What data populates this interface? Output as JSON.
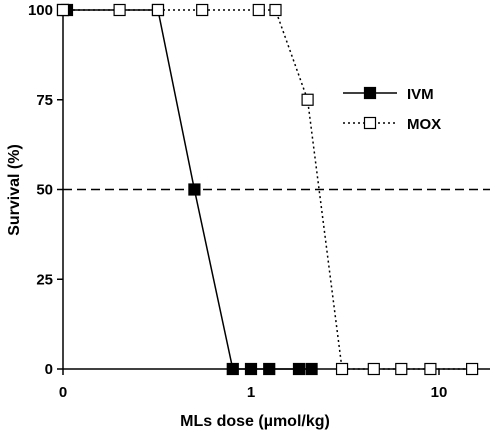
{
  "chart_data": {
    "type": "line",
    "xlabel": "MLs dose (µmol/kg)",
    "ylabel": "Survival (%)",
    "x_scale": "log",
    "xlim": [
      0.1,
      20
    ],
    "ylim": [
      0,
      100
    ],
    "xticks": [
      0.1,
      1,
      10
    ],
    "xtick_labels": [
      "0",
      "1",
      "10"
    ],
    "yticks": [
      0,
      25,
      50,
      75,
      100
    ],
    "ytick_labels": [
      "0",
      "25",
      "50",
      "75",
      "100"
    ],
    "reference_line": {
      "y": 50,
      "style": "dashed"
    },
    "grid": false,
    "legend_position": "right",
    "series": [
      {
        "name": "IVM",
        "marker": "filled-square",
        "line_style": "solid",
        "color": "#000000",
        "points": [
          {
            "x": 0.1,
            "y": 100
          },
          {
            "x": 0.105,
            "y": 100
          },
          {
            "x": 0.32,
            "y": 100
          },
          {
            "x": 0.5,
            "y": 50
          },
          {
            "x": 0.8,
            "y": 0
          },
          {
            "x": 1.0,
            "y": 0
          },
          {
            "x": 1.25,
            "y": 0
          },
          {
            "x": 1.8,
            "y": 0
          },
          {
            "x": 2.1,
            "y": 0
          }
        ]
      },
      {
        "name": "MOX",
        "marker": "open-square",
        "line_style": "dotted",
        "color": "#000000",
        "points": [
          {
            "x": 0.1,
            "y": 100
          },
          {
            "x": 0.2,
            "y": 100
          },
          {
            "x": 0.32,
            "y": 100
          },
          {
            "x": 0.55,
            "y": 100
          },
          {
            "x": 1.1,
            "y": 100
          },
          {
            "x": 1.35,
            "y": 100
          },
          {
            "x": 2.0,
            "y": 75
          },
          {
            "x": 3.05,
            "y": 0
          },
          {
            "x": 4.5,
            "y": 0
          },
          {
            "x": 6.3,
            "y": 0
          },
          {
            "x": 9.0,
            "y": 0
          },
          {
            "x": 15.0,
            "y": 0
          }
        ]
      }
    ]
  }
}
